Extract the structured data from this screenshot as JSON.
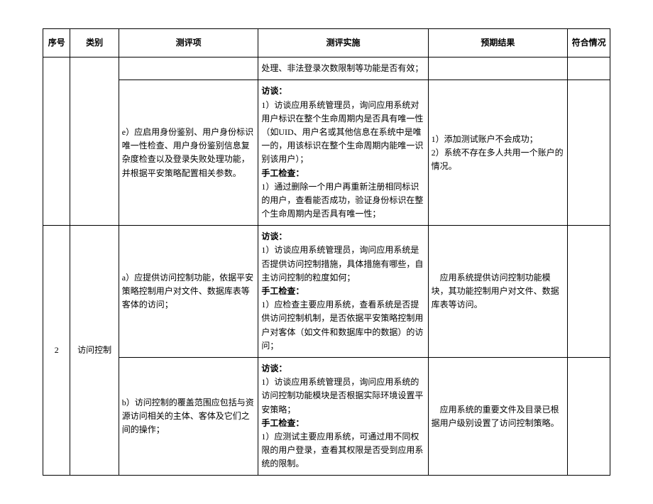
{
  "headers": {
    "seq": "序号",
    "category": "类别",
    "item": "测评项",
    "implementation": "测评实施",
    "result": "预期结果",
    "compliance": "符合情况"
  },
  "rows": [
    {
      "seq": "",
      "category": "",
      "item": "",
      "impl_prefix": "处理、非法登录次数限制等功能是否有效；",
      "impl_talk_label": "",
      "impl_talk": "",
      "impl_manual_label": "",
      "impl_manual": "",
      "result": "",
      "compliance": ""
    },
    {
      "seq": "",
      "category": "",
      "item": "e）应启用身份鉴别、用户身份标识唯一性检查、用户身份鉴别信息复杂度检查以及登录失败处理功能，并根据平安策略配置相关参数。",
      "impl_talk_label": "访谈：",
      "impl_talk": "1）访谈应用系统管理员，询问应用系统对用户标识在整个生命周期内是否具有唯一性（如UID、用户名或其他信息在系统中是唯一的，用该标识在整个生命周期内能唯一识别该用户）；",
      "impl_manual_label": "手工检查：",
      "impl_manual": "1）通过删除一个用户再重新注册相同标识的用户，查看能否成功，验证身份标识在整个生命周期内是否具有唯一性；",
      "result": "1）添加测试账户不会成功；\n2）系统不存在多人共用一个账户的情况。",
      "compliance": ""
    },
    {
      "seq": "2",
      "category": "访问控制",
      "item": "a）应提供访问控制功能，依据平安策略控制用户对文件、数据库表等客体的访问；",
      "impl_talk_label": "访谈：",
      "impl_talk": "1）访谈应用系统管理员，询问应用系统是否提供访问控制措施，具体措施有哪些，自主访问控制的粒度如何；",
      "impl_manual_label": "手工检查：",
      "impl_manual": "1）应检查主要应用系统，查看系统是否提供访问控制机制，是否依据平安策略控制用户对客体（如文件和数据库中的数据）的访问；",
      "result": "　应用系统提供访问控制功能模块，其功能控制用户对文件、数据库表等访问。",
      "compliance": ""
    },
    {
      "seq": "",
      "category": "",
      "item": "b）访问控制的覆盖范围应包括与资源访问相关的主体、客体及它们之间的操作；",
      "impl_talk_label": "访谈：",
      "impl_talk": "1）访谈应用系统管理员，询问应用系统的访问控制功能模块是否根据实际环境设置平安策略；",
      "impl_manual_label": "手工检查：",
      "impl_manual": "1）应测试主要应用系统，可通过用不同权限的用户登录，查看其权限是否受到应用系统的限制。",
      "result": "　应用系统的重要文件及目录已根据用户级别设置了访问控制策略。",
      "compliance": ""
    }
  ]
}
